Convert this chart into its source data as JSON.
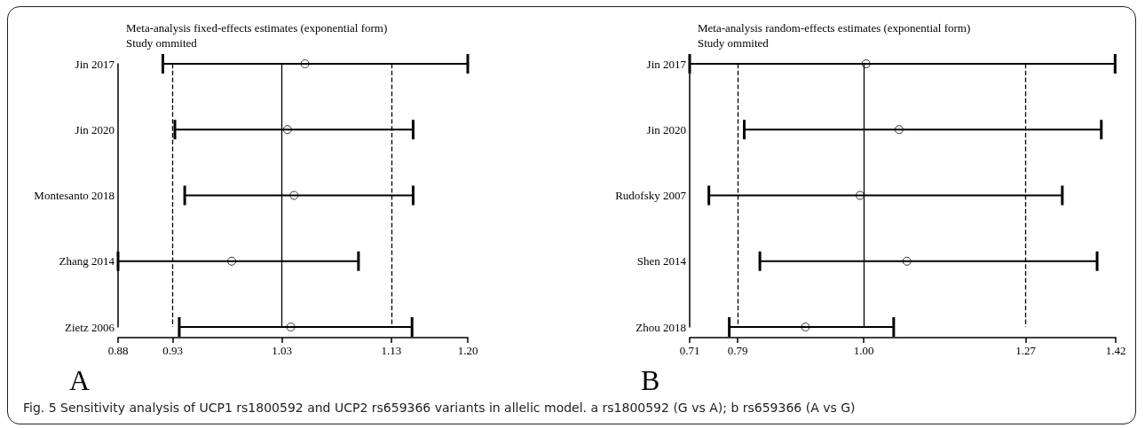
{
  "chart_data": [
    {
      "type": "scatter",
      "title": "Meta-analysis fixed-effects estimates (exponential form)",
      "subtitle": "Study ommited",
      "orientation": "horizontal",
      "marker": "circle",
      "grid": false,
      "color": "#000000",
      "categories": [
        "Jin 2017",
        "Jin 2020",
        "Montesanto 2018",
        "Zhang 2014",
        "Zietz 2006"
      ],
      "values": [
        1.051,
        1.035,
        1.041,
        0.984,
        1.038
      ],
      "errors": [
        [
          0.921,
          1.2
        ],
        [
          0.932,
          1.15
        ],
        [
          0.941,
          1.15
        ],
        [
          0.88,
          1.1
        ],
        [
          0.936,
          1.149
        ]
      ],
      "xlim": [
        0.88,
        1.2
      ],
      "xticks": [
        0.88,
        0.93,
        1.03,
        1.13,
        {
          "value": 1.2,
          "label": "1.20"
        }
      ],
      "ref_lines": [
        {
          "axis": "x",
          "value": 0.93,
          "line_style": "dashed"
        },
        {
          "axis": "x",
          "value": 1.03,
          "line_style": "solid"
        },
        {
          "axis": "x",
          "value": 1.13,
          "line_style": "dashed"
        }
      ],
      "annotations": [
        "A",
        "Fig. 5 Sensitivity analysis of UCP1 rs1800592 and UCP2 rs659366 variants in allelic model. a rs1800592 (G vs A); b rs659366 (A vs G)"
      ]
    },
    {
      "type": "scatter",
      "title": "Meta-analysis random-effects estimates (exponential form)",
      "subtitle": "Study ommited",
      "orientation": "horizontal",
      "marker": "circle",
      "grid": false,
      "color": "#000000",
      "categories": [
        "Jin 2017",
        "Jin 2020",
        "Rudofsky 2007",
        "Shen 2014",
        "Zhou 2018"
      ],
      "values": [
        1.004,
        1.059,
        0.994,
        1.072,
        0.903
      ],
      "errors": [
        [
          0.71,
          1.419
        ],
        [
          0.801,
          1.396
        ],
        [
          0.742,
          1.331
        ],
        [
          0.827,
          1.389
        ],
        [
          0.776,
          1.05
        ]
      ],
      "xlim": [
        0.71,
        1.42
      ],
      "xticks": [
        0.71,
        0.79,
        {
          "value": 1.0,
          "label": "1.00"
        },
        1.27,
        1.42
      ],
      "ref_lines": [
        {
          "axis": "x",
          "value": 0.79,
          "line_style": "dashed"
        },
        {
          "axis": "x",
          "value": 1.0,
          "line_style": "solid"
        },
        {
          "axis": "x",
          "value": 1.27,
          "line_style": "dashed"
        }
      ],
      "annotations": [
        "B"
      ]
    }
  ]
}
